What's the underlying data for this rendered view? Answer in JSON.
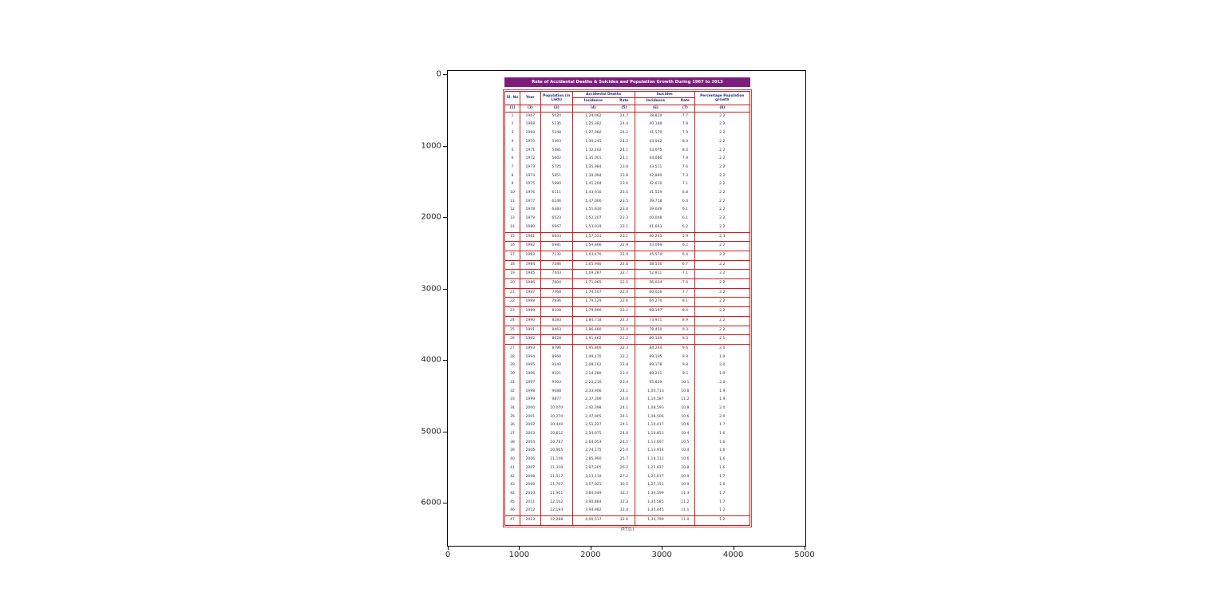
{
  "axes": {
    "x_ticks": [
      "0",
      "1000",
      "2000",
      "3000",
      "4000",
      "5000"
    ],
    "y_ticks": [
      "0",
      "1000",
      "2000",
      "3000",
      "4000",
      "5000",
      "6000"
    ]
  },
  "colors": {
    "banner_bg": "#7b1d7b",
    "table_border": "#d01818",
    "header_text": "#1f2d7a"
  },
  "doc": {
    "banner_text": "Rate of Accidental Deaths & Suicides and Population Growth During 1967 to 2013",
    "footer": "(P.T.O.)",
    "table": {
      "headers": {
        "sl_no": "Sl. No",
        "year": "Year",
        "population": "Population (in Lakh)",
        "accidental": "Accidental Deaths",
        "suicides": "Suicides",
        "growth": "Percentage Population growth",
        "incidence": "Incidence",
        "rate": "Rate"
      },
      "col_numbers": [
        "(1)",
        "(2)",
        "(3)",
        "(4)",
        "(5)",
        "(6)",
        "(7)",
        "(8)"
      ],
      "rows": [
        [
          "1",
          "1967",
          "5024",
          "1,24,062",
          "24.7",
          "38,829",
          "7.7",
          "2.2"
        ],
        [
          "2",
          "1968",
          "5135",
          "1,25,382",
          "24.4",
          "40,188",
          "7.8",
          "2.2"
        ],
        [
          "3",
          "1969",
          "5248",
          "1,27,060",
          "24.2",
          "41,570",
          "7.9",
          "2.2"
        ],
        [
          "4",
          "1970",
          "5363",
          "1,30,245",
          "24.3",
          "43,042",
          "8.0",
          "2.2"
        ],
        [
          "5",
          "1971",
          "5481",
          "1,32,202",
          "24.1",
          "43,675",
          "8.0",
          "2.2"
        ],
        [
          "6",
          "1972",
          "5602",
          "1,35,001",
          "24.1",
          "44,086",
          "7.9",
          "2.2"
        ],
        [
          "7",
          "1973",
          "5725",
          "1,35,984",
          "23.8",
          "43,511",
          "7.6",
          "2.2"
        ],
        [
          "8",
          "1974",
          "5851",
          "1,39,094",
          "23.8",
          "42,890",
          "7.3",
          "2.2"
        ],
        [
          "9",
          "1975",
          "5980",
          "1,41,204",
          "23.6",
          "42,610",
          "7.1",
          "2.2"
        ],
        [
          "10",
          "1976",
          "6111",
          "1,43,916",
          "23.5",
          "41,529",
          "6.8",
          "2.2"
        ],
        [
          "11",
          "1977",
          "6246",
          "1,47,006",
          "23.5",
          "39,718",
          "6.4",
          "2.2"
        ],
        [
          "12",
          "1978",
          "6383",
          "1,51,830",
          "23.8",
          "39,049",
          "6.1",
          "2.2"
        ],
        [
          "13",
          "1979",
          "6523",
          "1,52,207",
          "23.3",
          "40,048",
          "6.1",
          "2.2"
        ],
        [
          "14",
          "1980",
          "6667",
          "1,53,919",
          "23.1",
          "41,663",
          "6.2",
          "2.2"
        ],
        [
          "15",
          "1981",
          "6833",
          "1,57,531",
          "23.1",
          "40,245",
          "5.9",
          "2.3"
        ],
        [
          "16",
          "1982",
          "6981",
          "1,59,866",
          "22.9",
          "43,069",
          "6.2",
          "2.2"
        ],
        [
          "17",
          "1983",
          "7132",
          "1,63,476",
          "22.9",
          "45,574",
          "6.4",
          "2.2"
        ],
        [
          "18",
          "1984",
          "7286",
          "1,65,946",
          "22.8",
          "48,516",
          "6.7",
          "2.2"
        ],
        [
          "19",
          "1985",
          "7443",
          "1,69,287",
          "22.7",
          "52,811",
          "7.1",
          "2.2"
        ],
        [
          "20",
          "1986",
          "7604",
          "1,71,065",
          "22.5",
          "56,034",
          "7.4",
          "2.2"
        ],
        [
          "21",
          "1987",
          "7768",
          "1,74,107",
          "22.4",
          "60,026",
          "7.7",
          "2.2"
        ],
        [
          "22",
          "1988",
          "7936",
          "1,79,129",
          "22.6",
          "64,270",
          "8.1",
          "2.2"
        ],
        [
          "23",
          "1989",
          "8108",
          "1,79,896",
          "22.2",
          "68,197",
          "8.4",
          "2.2"
        ],
        [
          "24",
          "1990",
          "8283",
          "1,84,718",
          "22.3",
          "73,911",
          "8.9",
          "2.2"
        ],
        [
          "25",
          "1991",
          "8463",
          "1,86,480",
          "22.0",
          "78,450",
          "9.3",
          "2.2"
        ],
        [
          "26",
          "1992",
          "8628",
          "1,91,462",
          "22.2",
          "80,149",
          "9.3",
          "2.1"
        ],
        [
          "27",
          "1993",
          "8796",
          "1,95,800",
          "22.3",
          "84,244",
          "9.6",
          "2.0"
        ],
        [
          "28",
          "1994",
          "8968",
          "1,99,476",
          "22.2",
          "89,195",
          "9.9",
          "1.9"
        ],
        [
          "29",
          "1995",
          "9143",
          "2,08,162",
          "22.8",
          "89,178",
          "9.8",
          "2.0"
        ],
        [
          "30",
          "1996",
          "9321",
          "2,14,280",
          "23.0",
          "88,241",
          "9.5",
          "1.9"
        ],
        [
          "31",
          "1997",
          "9503",
          "2,22,216",
          "23.4",
          "95,829",
          "10.1",
          "2.0"
        ],
        [
          "32",
          "1998",
          "9688",
          "2,33,906",
          "24.1",
          "1,04,713",
          "10.8",
          "1.9"
        ],
        [
          "33",
          "1999",
          "9877",
          "2,37,306",
          "24.0",
          "1,10,587",
          "11.2",
          "1.9"
        ],
        [
          "34",
          "2000",
          "10,070",
          "2,42,398",
          "24.1",
          "1,08,593",
          "10.8",
          "2.0"
        ],
        [
          "35",
          "2001",
          "10,270",
          "2,47,905",
          "24.1",
          "1,08,506",
          "10.6",
          "2.0"
        ],
        [
          "36",
          "2002",
          "10,440",
          "2,51,227",
          "24.1",
          "1,10,417",
          "10.6",
          "1.7"
        ],
        [
          "37",
          "2003",
          "10,612",
          "2,54,975",
          "24.0",
          "1,10,851",
          "10.4",
          "1.6"
        ],
        [
          "38",
          "2004",
          "10,787",
          "2,64,053",
          "24.5",
          "1,13,697",
          "10.5",
          "1.6"
        ],
        [
          "39",
          "2005",
          "10,965",
          "2,74,175",
          "25.0",
          "1,13,914",
          "10.4",
          "1.6"
        ],
        [
          "40",
          "2006",
          "11,146",
          "2,85,990",
          "25.7",
          "1,18,112",
          "10.6",
          "1.6"
        ],
        [
          "41",
          "2007",
          "11,330",
          "2,97,305",
          "26.2",
          "1,22,637",
          "10.8",
          "1.6"
        ],
        [
          "42",
          "2008",
          "11,517",
          "3,13,110",
          "27.2",
          "1,25,017",
          "10.9",
          "1.7"
        ],
        [
          "43",
          "2009",
          "11,707",
          "3,57,021",
          "30.5",
          "1,27,151",
          "10.9",
          "1.6"
        ],
        [
          "44",
          "2010",
          "11,901",
          "3,84,649",
          "32.3",
          "1,34,599",
          "11.3",
          "1.7"
        ],
        [
          "45",
          "2011",
          "12,102",
          "3,90,884",
          "32.3",
          "1,35,585",
          "11.2",
          "1.7"
        ],
        [
          "46",
          "2012",
          "12,193",
          "3,94,982",
          "32.4",
          "1,35,445",
          "11.1",
          "1.2"
        ],
        [
          "47",
          "2013",
          "12,288",
          "4,00,517",
          "32.6",
          "1,34,799",
          "11.0",
          "1.2"
        ]
      ]
    }
  }
}
